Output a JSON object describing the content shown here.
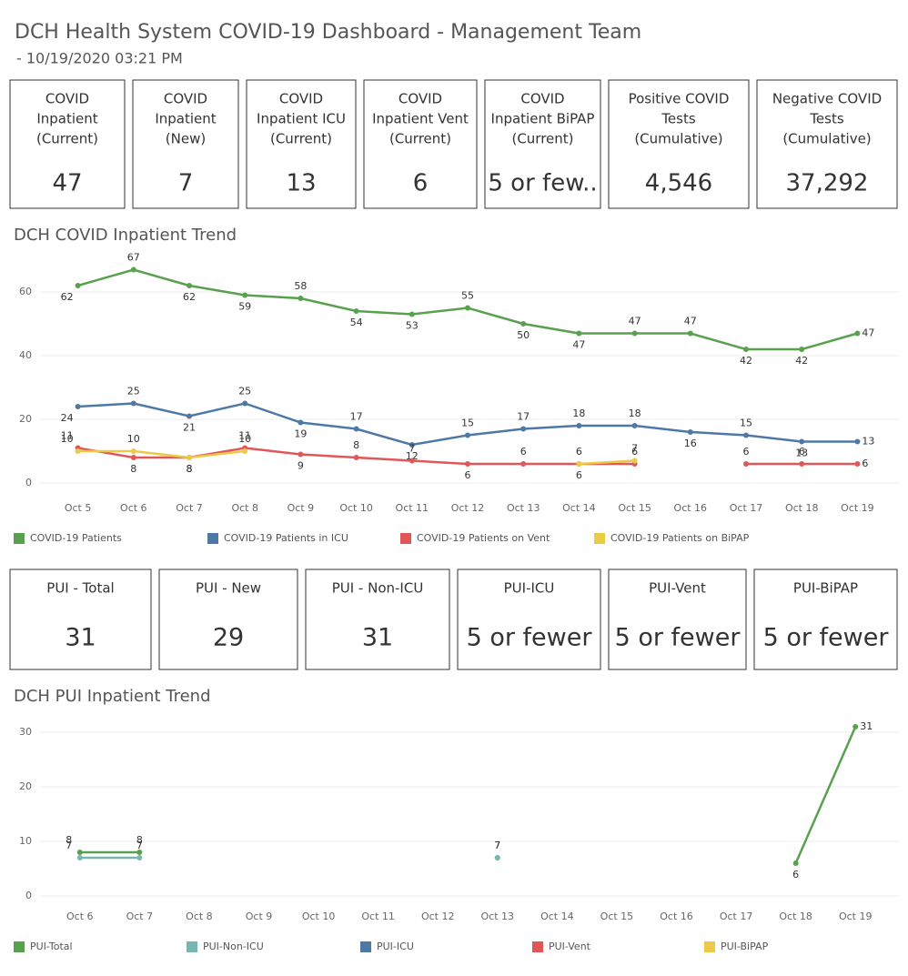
{
  "header": {
    "title": "DCH Health System COVID-19 Dashboard - Management Team",
    "subtitle": "- 10/19/2020 03:21 PM"
  },
  "kpis": [
    {
      "label": [
        "COVID",
        "Inpatient",
        "(Current)"
      ],
      "value": "47"
    },
    {
      "label": [
        "COVID",
        "Inpatient",
        "(New)"
      ],
      "value": "7"
    },
    {
      "label": [
        "COVID",
        "Inpatient ICU",
        "(Current)"
      ],
      "value": "13"
    },
    {
      "label": [
        "COVID",
        "Inpatient Vent",
        "(Current)"
      ],
      "value": "6"
    },
    {
      "label": [
        "COVID",
        "Inpatient BiPAP",
        "(Current)"
      ],
      "value": "5 or few.."
    },
    {
      "label": [
        "Positive COVID",
        "Tests",
        "(Cumulative)"
      ],
      "value": "4,546"
    },
    {
      "label": [
        "Negative COVID",
        "Tests",
        "(Cumulative)"
      ],
      "value": "37,292"
    }
  ],
  "pui_kpis": [
    {
      "label": "PUI - Total",
      "value": "31"
    },
    {
      "label": "PUI - New",
      "value": "29"
    },
    {
      "label": "PUI - Non-ICU",
      "value": "31"
    },
    {
      "label": "PUI-ICU",
      "value": "5 or fewer"
    },
    {
      "label": "PUI-Vent",
      "value": "5 or fewer"
    },
    {
      "label": "PUI-BiPAP",
      "value": "5 or fewer"
    }
  ],
  "chart_data": [
    {
      "type": "line",
      "title": "DCH COVID Inpatient Trend",
      "categories": [
        "Oct 5",
        "Oct 6",
        "Oct 7",
        "Oct 8",
        "Oct 9",
        "Oct 10",
        "Oct 11",
        "Oct 12",
        "Oct 13",
        "Oct 14",
        "Oct 15",
        "Oct 16",
        "Oct 17",
        "Oct 18",
        "Oct 19"
      ],
      "ylim": [
        0,
        70
      ],
      "yticks": [
        0,
        20,
        40,
        60
      ],
      "grid": true,
      "series": [
        {
          "name": "COVID-19 Patients",
          "color": "#59a14f",
          "values": [
            62,
            67,
            62,
            59,
            58,
            54,
            53,
            55,
            50,
            47,
            47,
            47,
            42,
            42,
            47
          ]
        },
        {
          "name": "COVID-19 Patients in ICU",
          "color": "#4e79a7",
          "values": [
            24,
            25,
            21,
            25,
            19,
            17,
            12,
            15,
            17,
            18,
            18,
            16,
            15,
            13,
            13
          ]
        },
        {
          "name": "COVID-19 Patients on Vent",
          "color": "#e15759",
          "values": [
            11,
            8,
            8,
            11,
            9,
            8,
            7,
            6,
            6,
            6,
            6,
            null,
            6,
            6,
            6
          ]
        },
        {
          "name": "COVID-19 Patients on BiPAP",
          "color": "#edc948",
          "values": [
            10,
            10,
            8,
            10,
            null,
            null,
            null,
            null,
            null,
            6,
            7,
            null,
            null,
            null,
            null
          ]
        }
      ]
    },
    {
      "type": "line",
      "title": "DCH PUI Inpatient Trend",
      "categories": [
        "Oct 6",
        "Oct 7",
        "Oct 8",
        "Oct 9",
        "Oct 10",
        "Oct 11",
        "Oct 12",
        "Oct 13",
        "Oct 14",
        "Oct 15",
        "Oct 16",
        "Oct 17",
        "Oct 18",
        "Oct 19"
      ],
      "ylim": [
        0,
        33
      ],
      "yticks": [
        0,
        10,
        20,
        30
      ],
      "grid": true,
      "series": [
        {
          "name": "PUI-Total",
          "color": "#59a14f",
          "values": [
            8,
            8,
            null,
            null,
            null,
            null,
            null,
            7,
            null,
            null,
            null,
            null,
            6,
            31
          ]
        },
        {
          "name": "PUI-Non-ICU",
          "color": "#76b7b2",
          "values": [
            7,
            7,
            null,
            null,
            null,
            null,
            null,
            7,
            null,
            null,
            null,
            null,
            null,
            null
          ]
        },
        {
          "name": "PUI-ICU",
          "color": "#4e79a7",
          "values": [
            null,
            null,
            null,
            null,
            null,
            null,
            null,
            null,
            null,
            null,
            null,
            null,
            null,
            null
          ]
        },
        {
          "name": "PUI-Vent",
          "color": "#e15759",
          "values": [
            null,
            null,
            null,
            null,
            null,
            null,
            null,
            null,
            null,
            null,
            null,
            null,
            null,
            null
          ]
        },
        {
          "name": "PUI-BiPAP",
          "color": "#edc948",
          "values": [
            null,
            null,
            null,
            null,
            null,
            null,
            null,
            null,
            null,
            null,
            null,
            null,
            null,
            null
          ]
        }
      ]
    }
  ]
}
